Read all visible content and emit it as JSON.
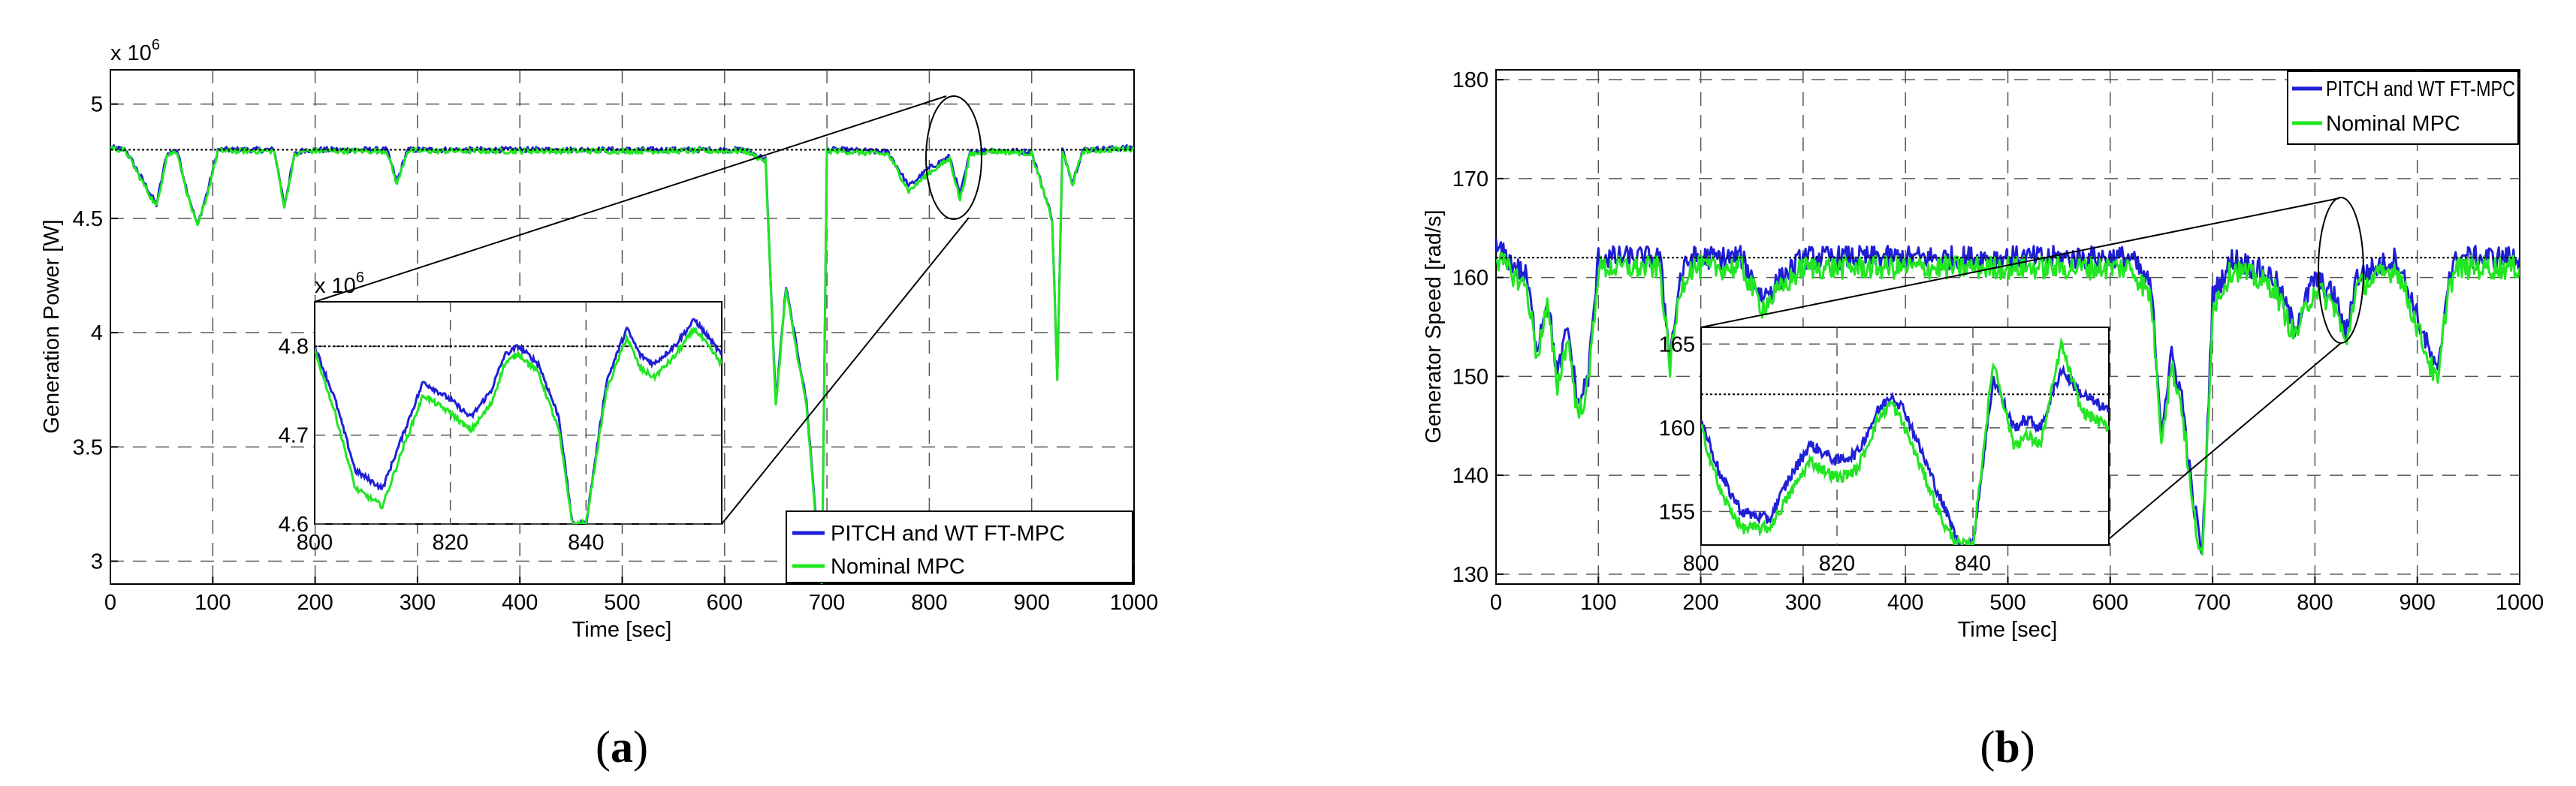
{
  "colors": {
    "series_fault": "#1f1fd6",
    "series_nominal": "#22e622",
    "reference": "#000000",
    "grid": "#555555"
  },
  "panel_labels": [
    {
      "open": "(",
      "letter": "a",
      "close": ")"
    },
    {
      "open": "(",
      "letter": "b",
      "close": ")"
    }
  ],
  "chart_data": [
    {
      "type": "line",
      "id": "a",
      "xlabel": "Time [sec]",
      "ylabel": "Generation Power [W]",
      "xlim": [
        0,
        1000
      ],
      "ylim": [
        2900000,
        5150000
      ],
      "xticks": [
        0,
        100,
        200,
        300,
        400,
        500,
        600,
        700,
        800,
        900,
        1000
      ],
      "xtick_labels": [
        "0",
        "100",
        "200",
        "300",
        "400",
        "500",
        "600",
        "700",
        "800",
        "900",
        "1000"
      ],
      "yticks": [
        3000000,
        3500000,
        4000000,
        4500000,
        5000000
      ],
      "ytick_labels": [
        "3",
        "3.5",
        "4",
        "4.5",
        "5"
      ],
      "exponent_label": "x 10",
      "exponent_power": "6",
      "reference_value": 4800000,
      "legend": [
        "PITCH and WT FT-MPC",
        "Nominal MPC"
      ],
      "legend_position": "bottom-right",
      "series": [
        {
          "name": "PITCH and WT FT-MPC",
          "color_key": "series_fault",
          "x": [
            0,
            15,
            30,
            45,
            55,
            65,
            75,
            85,
            95,
            105,
            160,
            170,
            180,
            190,
            270,
            280,
            290,
            620,
            640,
            650,
            660,
            670,
            680,
            690,
            695,
            700,
            710,
            760,
            780,
            800,
            820,
            830,
            840,
            860,
            900,
            920,
            925,
            930,
            940,
            950,
            1000
          ],
          "y": [
            4810000,
            4800000,
            4680000,
            4560000,
            4780000,
            4800000,
            4620000,
            4470000,
            4620000,
            4800000,
            4800000,
            4560000,
            4780000,
            4800000,
            4800000,
            4660000,
            4800000,
            4800000,
            4760000,
            3700000,
            4200000,
            3950000,
            3700000,
            3150000,
            2900000,
            4800000,
            4800000,
            4790000,
            4640000,
            4720000,
            4770000,
            4600000,
            4790000,
            4800000,
            4790000,
            4500000,
            3800000,
            4800000,
            4660000,
            4800000,
            4810000
          ]
        },
        {
          "name": "Nominal MPC",
          "color_key": "series_nominal",
          "x": [
            0,
            15,
            30,
            45,
            55,
            65,
            75,
            85,
            95,
            105,
            160,
            170,
            180,
            190,
            270,
            280,
            290,
            620,
            640,
            650,
            660,
            670,
            680,
            690,
            695,
            700,
            710,
            760,
            780,
            800,
            820,
            830,
            840,
            860,
            900,
            920,
            925,
            930,
            940,
            950,
            1000
          ],
          "y": [
            4810000,
            4795000,
            4670000,
            4550000,
            4775000,
            4795000,
            4610000,
            4460000,
            4610000,
            4795000,
            4795000,
            4550000,
            4775000,
            4795000,
            4795000,
            4650000,
            4795000,
            4795000,
            4750000,
            3680000,
            4190000,
            3930000,
            3680000,
            3120000,
            2900000,
            4795000,
            4795000,
            4780000,
            4620000,
            4700000,
            4760000,
            4580000,
            4780000,
            4795000,
            4785000,
            4490000,
            3800000,
            4795000,
            4650000,
            4795000,
            4805000
          ]
        }
      ],
      "inset": {
        "xlim": [
          800,
          860
        ],
        "ylim": [
          4600000,
          4850000
        ],
        "xticks": [
          800,
          820,
          840
        ],
        "xtick_labels": [
          "800",
          "820",
          "840"
        ],
        "yticks": [
          4600000,
          4700000,
          4800000
        ],
        "ytick_labels": [
          "4.6",
          "4.7",
          "4.8"
        ],
        "exponent_label": "x 10",
        "exponent_power": "6",
        "series": [
          {
            "name": "PITCH and WT FT-MPC",
            "color_key": "series_fault",
            "x": [
              800,
              803,
              806,
              810,
              813,
              816,
              820,
              823,
              826,
              828,
              830,
              833,
              836,
              838,
              840,
              843,
              846,
              848,
              850,
              853,
              856,
              860
            ],
            "y": [
              4800000,
              4740000,
              4660000,
              4640000,
              4700000,
              4760000,
              4740000,
              4720000,
              4750000,
              4790000,
              4800000,
              4780000,
              4720000,
              4600000,
              4600000,
              4760000,
              4820000,
              4790000,
              4780000,
              4800000,
              4830000,
              4790000
            ]
          },
          {
            "name": "Nominal MPC",
            "color_key": "series_nominal",
            "x": [
              800,
              803,
              806,
              810,
              813,
              816,
              820,
              823,
              826,
              828,
              830,
              833,
              836,
              838,
              840,
              843,
              846,
              848,
              850,
              853,
              856,
              860
            ],
            "y": [
              4795000,
              4725000,
              4640000,
              4620000,
              4685000,
              4745000,
              4725000,
              4705000,
              4735000,
              4780000,
              4792000,
              4770000,
              4705000,
              4600000,
              4600000,
              4750000,
              4810000,
              4775000,
              4765000,
              4788000,
              4820000,
              4780000
            ]
          }
        ]
      },
      "zoom_marker_center": [
        820,
        4670000
      ]
    },
    {
      "type": "line",
      "id": "b",
      "xlabel": "Time [sec]",
      "ylabel": "Generator Speed [rad/s]",
      "xlim": [
        0,
        1000
      ],
      "ylim": [
        129,
        181
      ],
      "xticks": [
        0,
        100,
        200,
        300,
        400,
        500,
        600,
        700,
        800,
        900,
        1000
      ],
      "xtick_labels": [
        "0",
        "100",
        "200",
        "300",
        "400",
        "500",
        "600",
        "700",
        "800",
        "900",
        "1000"
      ],
      "yticks": [
        130,
        140,
        150,
        160,
        170,
        180
      ],
      "ytick_labels": [
        "130",
        "140",
        "150",
        "160",
        "170",
        "180"
      ],
      "reference_value": 162,
      "legend": [
        "PITCH and WT FT-MPC",
        "Nominal MPC"
      ],
      "legend_position": "top-right",
      "series": [
        {
          "name": "PITCH and WT FT-MPC",
          "color_key": "series_fault",
          "x": [
            0,
            30,
            40,
            50,
            60,
            70,
            80,
            90,
            100,
            160,
            170,
            180,
            190,
            240,
            260,
            300,
            620,
            640,
            650,
            660,
            670,
            680,
            690,
            700,
            720,
            760,
            780,
            800,
            820,
            830,
            840,
            880,
            920,
            930,
            940,
            1000
          ],
          "y": [
            163,
            160,
            153,
            158,
            150,
            155,
            147,
            150,
            162,
            162,
            152,
            160,
            162,
            162,
            158,
            162,
            162,
            159,
            145,
            152,
            148,
            138,
            132,
            158,
            162,
            160,
            155,
            160,
            158,
            154,
            160,
            162,
            150,
            160,
            162,
            162
          ]
        },
        {
          "name": "Nominal MPC",
          "color_key": "series_nominal",
          "x": [
            0,
            30,
            40,
            50,
            60,
            70,
            80,
            90,
            100,
            160,
            170,
            180,
            190,
            240,
            260,
            300,
            620,
            640,
            650,
            660,
            670,
            680,
            690,
            700,
            720,
            760,
            780,
            800,
            820,
            830,
            840,
            880,
            920,
            930,
            940,
            1000
          ],
          "y": [
            162,
            159,
            152,
            157,
            149,
            154,
            146,
            149,
            161,
            161,
            151,
            159,
            161,
            161,
            157,
            161,
            161,
            158,
            144,
            151,
            147,
            137,
            131,
            157,
            161,
            159,
            154,
            159,
            157,
            153,
            159,
            161,
            149,
            159,
            161,
            161
          ]
        }
      ],
      "inset": {
        "xlim": [
          800,
          860
        ],
        "ylim": [
          153,
          166
        ],
        "xticks": [
          800,
          820,
          840
        ],
        "xtick_labels": [
          "800",
          "820",
          "840"
        ],
        "yticks": [
          155,
          160,
          165
        ],
        "ytick_labels": [
          "155",
          "160",
          "165"
        ],
        "series": [
          {
            "name": "PITCH and WT FT-MPC",
            "color_key": "series_fault",
            "x": [
              800,
              803,
              806,
              810,
              813,
              816,
              820,
              823,
              826,
              828,
              830,
              833,
              836,
              838,
              840,
              843,
              846,
              848,
              850,
              853,
              856,
              860
            ],
            "y": [
              160.5,
              157,
              155,
              154.5,
              157,
              159,
              158,
              158.5,
              161,
              162,
              161,
              158,
              155,
              153,
              153,
              163,
              160,
              160.5,
              160,
              163.5,
              162,
              161
            ]
          },
          {
            "name": "Nominal MPC",
            "color_key": "series_nominal",
            "x": [
              800,
              803,
              806,
              810,
              813,
              816,
              820,
              823,
              826,
              828,
              830,
              833,
              836,
              838,
              840,
              843,
              846,
              848,
              850,
              853,
              856,
              860
            ],
            "y": [
              160,
              156,
              154,
              154,
              156,
              158,
              157,
              157.5,
              160.5,
              161.5,
              160,
              157,
              154,
              153,
              153,
              164,
              159,
              159.5,
              159,
              165,
              161,
              160
            ]
          }
        ]
      },
      "zoom_marker_center": [
        825,
        160
      ]
    }
  ]
}
